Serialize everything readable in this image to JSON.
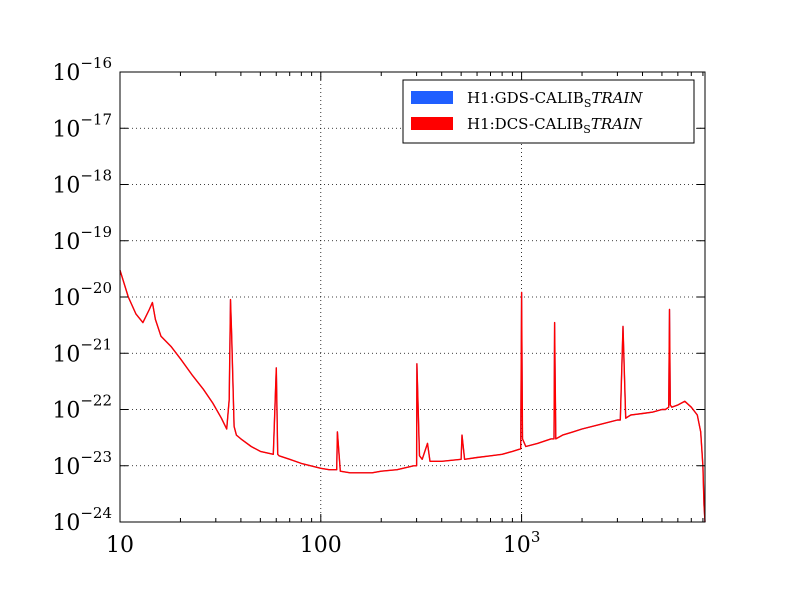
{
  "chart_data": {
    "type": "line",
    "title": "",
    "xlabel": "",
    "ylabel": "",
    "x_scale": "log",
    "y_scale": "log",
    "xlim": [
      10,
      8192
    ],
    "ylim": [
      1e-24,
      1e-16
    ],
    "grid": true,
    "legend_position": "top-right",
    "x_tick_labels": [
      {
        "value": 10,
        "base": "10",
        "exp": ""
      },
      {
        "value": 100,
        "base": "100",
        "exp": ""
      },
      {
        "value": 1000,
        "base": "10",
        "exp": "3"
      }
    ],
    "y_tick_labels": [
      {
        "value": 1e-16,
        "base": "10",
        "exp": "−16"
      },
      {
        "value": 1e-17,
        "base": "10",
        "exp": "−17"
      },
      {
        "value": 1e-18,
        "base": "10",
        "exp": "−18"
      },
      {
        "value": 1e-19,
        "base": "10",
        "exp": "−19"
      },
      {
        "value": 1e-20,
        "base": "10",
        "exp": "−20"
      },
      {
        "value": 1e-21,
        "base": "10",
        "exp": "−21"
      },
      {
        "value": 1e-22,
        "base": "10",
        "exp": "−22"
      },
      {
        "value": 1e-23,
        "base": "10",
        "exp": "−23"
      },
      {
        "value": 1e-24,
        "base": "10",
        "exp": "−24"
      }
    ],
    "series": [
      {
        "name": "H1:GDS-CALIB_STRAIN",
        "legend_main": "H1:GDS-CALIB",
        "legend_sub": "S",
        "legend_italic": "TRAIN",
        "color": "#1f5fff",
        "x": [
          10,
          11,
          12,
          13,
          14,
          14.5,
          15,
          16,
          18,
          20,
          23,
          26,
          29,
          32,
          34,
          35,
          35.5,
          36,
          37,
          38,
          40,
          45,
          50,
          58,
          60,
          61,
          62,
          70,
          80,
          100,
          110,
          120,
          121,
          125,
          140,
          160,
          180,
          200,
          240,
          290,
          300,
          301,
          310,
          320,
          340,
          350,
          400,
          500,
          505,
          520,
          600,
          700,
          800,
          900,
          990,
          1000,
          1010,
          1050,
          1200,
          1400,
          1450,
          1460,
          1480,
          1600,
          1800,
          2000,
          2500,
          3000,
          3100,
          3200,
          3300,
          3400,
          3500,
          4000,
          4500,
          5000,
          5200,
          5400,
          5450,
          5500,
          5600,
          6000,
          6500,
          7000,
          7500,
          7800,
          8000,
          8100,
          8192
        ],
        "y": [
          3e-20,
          1e-20,
          5e-21,
          3.5e-21,
          6e-21,
          8e-21,
          4e-21,
          2e-21,
          1.3e-21,
          8e-22,
          4e-22,
          2.3e-22,
          1.3e-22,
          7e-23,
          4.5e-23,
          1.5e-22,
          9e-21,
          2e-21,
          5e-23,
          3.5e-23,
          3e-23,
          2.2e-23,
          1.8e-23,
          1.6e-23,
          5.5e-22,
          1.6e-23,
          1.5e-23,
          1.3e-23,
          1.1e-23,
          9e-24,
          8.5e-24,
          8.5e-24,
          4e-23,
          8e-24,
          7.5e-24,
          7.5e-24,
          7.5e-24,
          8e-24,
          8.5e-24,
          1e-23,
          1e-23,
          6.5e-22,
          1.5e-23,
          1.3e-23,
          2.5e-23,
          1.2e-23,
          1.2e-23,
          1.3e-23,
          3.5e-23,
          1.3e-23,
          1.4e-23,
          1.5e-23,
          1.6e-23,
          1.8e-23,
          2e-23,
          1.2e-20,
          3e-23,
          2.2e-23,
          2.5e-23,
          3e-23,
          3e-23,
          3.5e-21,
          3e-23,
          3.5e-23,
          4e-23,
          4.5e-23,
          5.5e-23,
          6.5e-23,
          6.5e-23,
          3e-21,
          7e-23,
          7.5e-23,
          8e-23,
          8.5e-23,
          9e-23,
          1e-22,
          1e-22,
          1.1e-22,
          6e-21,
          1.2e-22,
          1.1e-22,
          1.2e-22,
          1.4e-22,
          1.1e-22,
          8e-23,
          4e-23,
          1e-23,
          2e-24,
          1e-24
        ]
      },
      {
        "name": "H1:DCS-CALIB_STRAIN",
        "legend_main": "H1:DCS-CALIB",
        "legend_sub": "S",
        "legend_italic": "TRAIN",
        "color": "#ff0000",
        "x": [
          10,
          11,
          12,
          13,
          14,
          14.5,
          15,
          16,
          18,
          20,
          23,
          26,
          29,
          32,
          34,
          35,
          35.5,
          36,
          37,
          38,
          40,
          45,
          50,
          58,
          60,
          61,
          62,
          70,
          80,
          100,
          110,
          120,
          121,
          125,
          140,
          160,
          180,
          200,
          240,
          290,
          300,
          301,
          310,
          320,
          340,
          350,
          400,
          500,
          505,
          520,
          600,
          700,
          800,
          900,
          990,
          1000,
          1010,
          1050,
          1200,
          1400,
          1450,
          1460,
          1480,
          1600,
          1800,
          2000,
          2500,
          3000,
          3100,
          3200,
          3300,
          3400,
          3500,
          4000,
          4500,
          5000,
          5200,
          5400,
          5450,
          5500,
          5600,
          6000,
          6500,
          7000,
          7500,
          7800,
          8000,
          8100,
          8192
        ],
        "y": [
          3e-20,
          1e-20,
          5e-21,
          3.5e-21,
          6e-21,
          8e-21,
          4e-21,
          2e-21,
          1.3e-21,
          8e-22,
          4e-22,
          2.3e-22,
          1.3e-22,
          7e-23,
          4.5e-23,
          1.5e-22,
          9e-21,
          2e-21,
          5e-23,
          3.5e-23,
          3e-23,
          2.2e-23,
          1.8e-23,
          1.6e-23,
          5.5e-22,
          1.6e-23,
          1.5e-23,
          1.3e-23,
          1.1e-23,
          9e-24,
          8.5e-24,
          8.5e-24,
          4e-23,
          8e-24,
          7.5e-24,
          7.5e-24,
          7.5e-24,
          8e-24,
          8.5e-24,
          1e-23,
          1e-23,
          6.5e-22,
          1.5e-23,
          1.3e-23,
          2.5e-23,
          1.2e-23,
          1.2e-23,
          1.3e-23,
          3.5e-23,
          1.3e-23,
          1.4e-23,
          1.5e-23,
          1.6e-23,
          1.8e-23,
          2e-23,
          1.2e-20,
          3e-23,
          2.2e-23,
          2.5e-23,
          3e-23,
          3e-23,
          3.5e-21,
          3e-23,
          3.5e-23,
          4e-23,
          4.5e-23,
          5.5e-23,
          6.5e-23,
          6.5e-23,
          3e-21,
          7e-23,
          7.5e-23,
          8e-23,
          8.5e-23,
          9e-23,
          1e-22,
          1e-22,
          1.1e-22,
          6e-21,
          1.2e-22,
          1.1e-22,
          1.2e-22,
          1.4e-22,
          1.1e-22,
          8e-23,
          4e-23,
          1e-23,
          2e-24,
          1e-24
        ]
      }
    ]
  }
}
